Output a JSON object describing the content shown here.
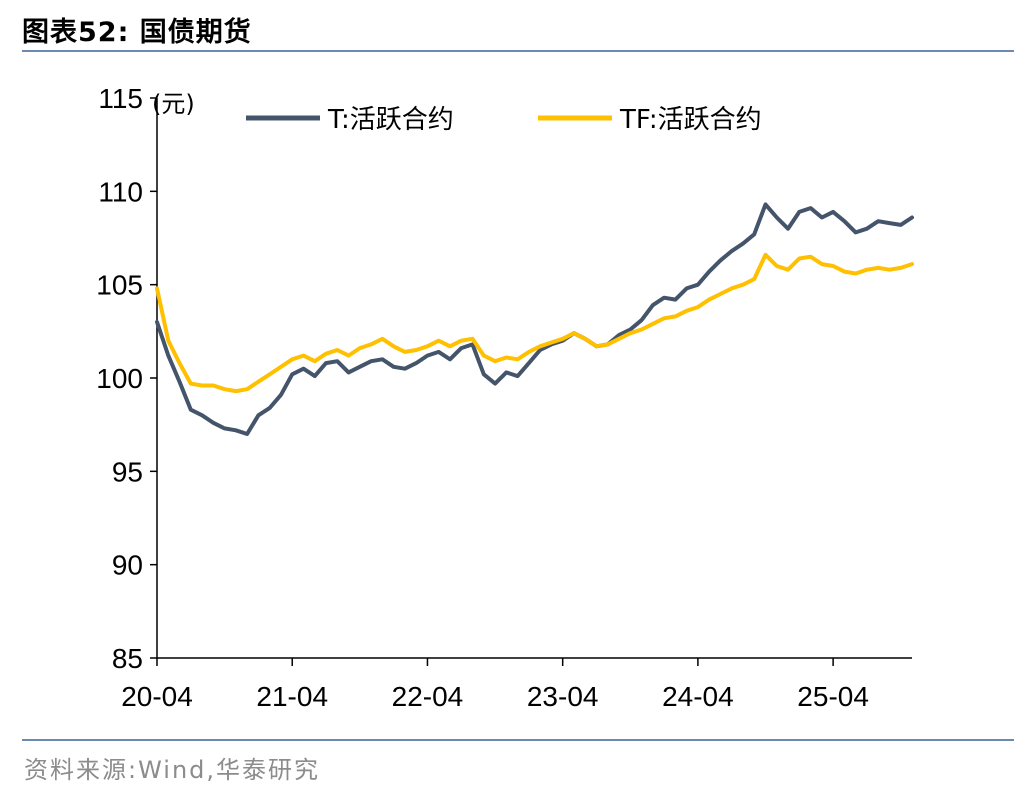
{
  "figure": {
    "title": "图表52:  国债期货",
    "source": "资料来源:Wind,华泰研究"
  },
  "chart_data": {
    "type": "line",
    "ylabel": "(元)",
    "ylim": [
      85,
      115
    ],
    "yticks": [
      85,
      90,
      95,
      100,
      105,
      110,
      115
    ],
    "xlim": [
      "2020-04",
      "2025-11"
    ],
    "xticks": [
      {
        "date": "2020-04",
        "label": "20-04"
      },
      {
        "date": "2021-04",
        "label": "21-04"
      },
      {
        "date": "2022-04",
        "label": "22-04"
      },
      {
        "date": "2023-04",
        "label": "23-04"
      },
      {
        "date": "2024-04",
        "label": "24-04"
      },
      {
        "date": "2025-04",
        "label": "25-04"
      }
    ],
    "grid": false,
    "legend": "top",
    "x": [
      "2020-04",
      "2020-05",
      "2020-06",
      "2020-07",
      "2020-08",
      "2020-09",
      "2020-10",
      "2020-11",
      "2020-12",
      "2021-01",
      "2021-02",
      "2021-03",
      "2021-04",
      "2021-05",
      "2021-06",
      "2021-07",
      "2021-08",
      "2021-09",
      "2021-10",
      "2021-11",
      "2021-12",
      "2022-01",
      "2022-02",
      "2022-03",
      "2022-04",
      "2022-05",
      "2022-06",
      "2022-07",
      "2022-08",
      "2022-09",
      "2022-10",
      "2022-11",
      "2022-12",
      "2023-01",
      "2023-02",
      "2023-03",
      "2023-04",
      "2023-05",
      "2023-06",
      "2023-07",
      "2023-08",
      "2023-09",
      "2023-10",
      "2023-11",
      "2023-12",
      "2024-01",
      "2024-02",
      "2024-03",
      "2024-04",
      "2024-05",
      "2024-06",
      "2024-07",
      "2024-08",
      "2024-09",
      "2024-10",
      "2024-11",
      "2024-12",
      "2025-01",
      "2025-02",
      "2025-03",
      "2025-04",
      "2025-05",
      "2025-06",
      "2025-07",
      "2025-08",
      "2025-09",
      "2025-10",
      "2025-11"
    ],
    "series": [
      {
        "name": "T:活跃合约",
        "color": "#44546a",
        "values": [
          103.0,
          101.2,
          99.8,
          98.3,
          98.0,
          97.6,
          97.3,
          97.2,
          97.0,
          98.0,
          98.4,
          99.1,
          100.2,
          100.5,
          100.1,
          100.8,
          100.9,
          100.3,
          100.6,
          100.9,
          101.0,
          100.6,
          100.5,
          100.8,
          101.2,
          101.4,
          101.0,
          101.6,
          101.8,
          100.2,
          99.7,
          100.3,
          100.1,
          100.8,
          101.5,
          101.8,
          102.0,
          102.4,
          102.1,
          101.7,
          101.8,
          102.3,
          102.6,
          103.1,
          103.9,
          104.3,
          104.2,
          104.8,
          105.0,
          105.7,
          106.3,
          106.8,
          107.2,
          107.7,
          109.3,
          108.6,
          108.0,
          108.9,
          109.1,
          108.6,
          108.9,
          108.4,
          107.8,
          108.0,
          108.4,
          108.3,
          108.2,
          108.6
        ]
      },
      {
        "name": "TF:活跃合约",
        "color": "#ffc000",
        "values": [
          104.8,
          102.0,
          100.8,
          99.7,
          99.6,
          99.6,
          99.4,
          99.3,
          99.4,
          99.8,
          100.2,
          100.6,
          101.0,
          101.2,
          100.9,
          101.3,
          101.5,
          101.2,
          101.6,
          101.8,
          102.1,
          101.7,
          101.4,
          101.5,
          101.7,
          102.0,
          101.7,
          102.0,
          102.1,
          101.2,
          100.9,
          101.1,
          101.0,
          101.4,
          101.7,
          101.9,
          102.1,
          102.4,
          102.1,
          101.7,
          101.8,
          102.1,
          102.4,
          102.6,
          102.9,
          103.2,
          103.3,
          103.6,
          103.8,
          104.2,
          104.5,
          104.8,
          105.0,
          105.3,
          106.6,
          106.0,
          105.8,
          106.4,
          106.5,
          106.1,
          106.0,
          105.7,
          105.6,
          105.8,
          105.9,
          105.8,
          105.9,
          106.1
        ]
      }
    ]
  }
}
